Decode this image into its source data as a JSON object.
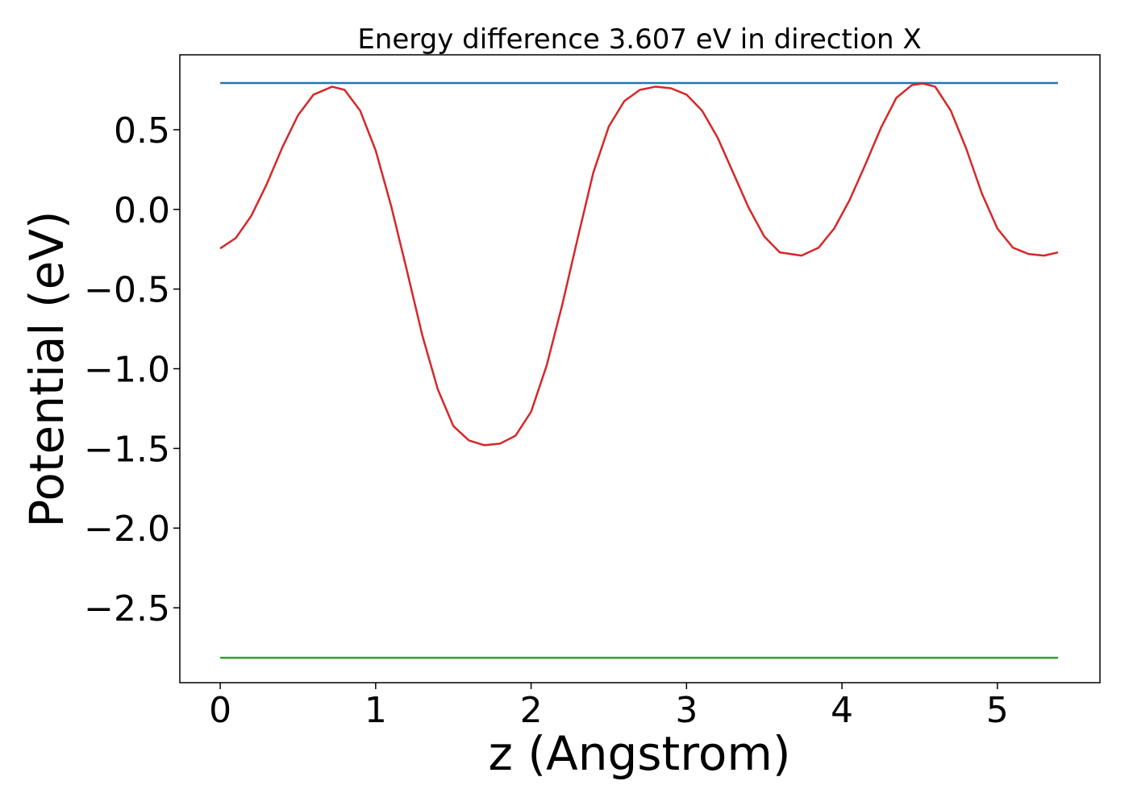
{
  "chart_data": {
    "type": "line",
    "title": "Energy difference 3.607 eV in direction X",
    "xlabel": "z (Angstrom)",
    "ylabel": "Potential (eV)",
    "xlim": [
      -0.26,
      5.66
    ],
    "ylim": [
      -2.97,
      0.97
    ],
    "xticks": [
      0,
      1,
      2,
      3,
      4,
      5
    ],
    "xtick_labels": [
      "0",
      "1",
      "2",
      "3",
      "4",
      "5"
    ],
    "yticks": [
      0.5,
      0.0,
      -0.5,
      -1.0,
      -1.5,
      -2.0,
      -2.5
    ],
    "ytick_labels": [
      "0.5",
      "0.0",
      "−0.5",
      "−1.0",
      "−1.5",
      "−2.0",
      "−2.5"
    ],
    "grid": false,
    "series": [
      {
        "color": "#1f77b4",
        "x": [
          0,
          5.39
        ],
        "y": [
          0.793,
          0.793
        ]
      },
      {
        "color": "#2ca02c",
        "x": [
          0,
          5.39
        ],
        "y": [
          -2.814,
          -2.814
        ]
      },
      {
        "color": "#d62728",
        "x": [
          0,
          0.1,
          0.2,
          0.3,
          0.4,
          0.5,
          0.6,
          0.72,
          0.8,
          0.9,
          1.0,
          1.1,
          1.2,
          1.3,
          1.4,
          1.5,
          1.6,
          1.7,
          1.8,
          1.9,
          2.0,
          2.1,
          2.2,
          2.3,
          2.4,
          2.5,
          2.6,
          2.7,
          2.8,
          2.9,
          3.0,
          3.1,
          3.2,
          3.3,
          3.4,
          3.5,
          3.6,
          3.74,
          3.85,
          3.95,
          4.05,
          4.15,
          4.25,
          4.35,
          4.45,
          4.52,
          4.6,
          4.7,
          4.8,
          4.9,
          5.0,
          5.1,
          5.2,
          5.3,
          5.39
        ],
        "y": [
          -0.245,
          -0.18,
          -0.04,
          0.16,
          0.39,
          0.59,
          0.72,
          0.77,
          0.75,
          0.62,
          0.37,
          0.02,
          -0.38,
          -0.79,
          -1.13,
          -1.36,
          -1.45,
          -1.48,
          -1.47,
          -1.42,
          -1.27,
          -0.98,
          -0.6,
          -0.18,
          0.23,
          0.52,
          0.68,
          0.75,
          0.77,
          0.76,
          0.72,
          0.62,
          0.45,
          0.23,
          0.01,
          -0.17,
          -0.27,
          -0.29,
          -0.24,
          -0.12,
          0.06,
          0.28,
          0.51,
          0.7,
          0.78,
          0.79,
          0.77,
          0.62,
          0.38,
          0.1,
          -0.12,
          -0.24,
          -0.28,
          -0.29,
          -0.27
        ]
      }
    ]
  }
}
